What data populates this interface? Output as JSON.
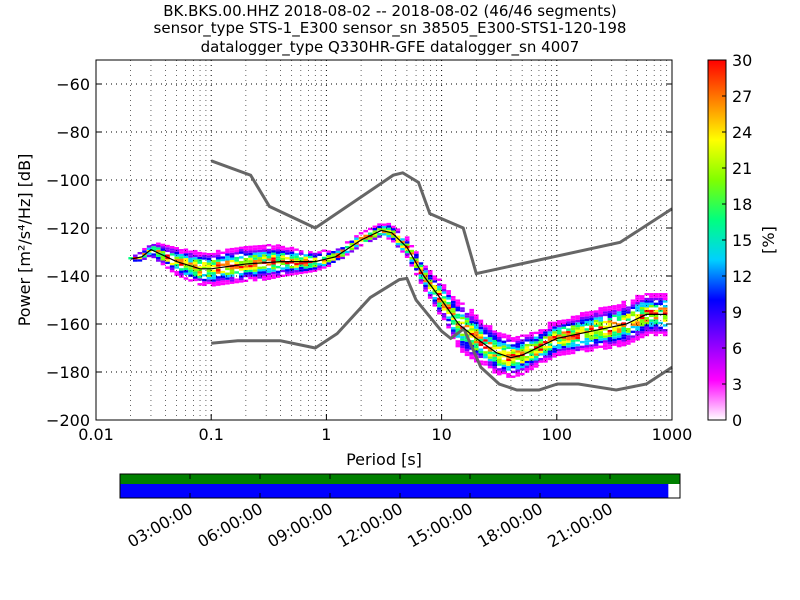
{
  "chart_data": {
    "type": "heatmap",
    "title_lines": [
      "BK.BKS.00.HHZ   2018-08-02 -- 2018-08-02  (46/46 segments)",
      "sensor_type STS-1_E300 sensor_sn 38505_E300-STS1-120-198",
      "datalogger_type Q330HR-GFE datalogger_sn 4007"
    ],
    "xlabel": "Period [s]",
    "ylabel": "Power [m²/s⁴/Hz] [dB]",
    "xscale": "log",
    "xlim": [
      0.01,
      1000
    ],
    "ylim": [
      -200,
      -50
    ],
    "xticks": [
      {
        "v": 0.01,
        "label": "0.01"
      },
      {
        "v": 0.1,
        "label": "0.1"
      },
      {
        "v": 1,
        "label": "1"
      },
      {
        "v": 10,
        "label": "10"
      },
      {
        "v": 100,
        "label": "100"
      },
      {
        "v": 1000,
        "label": "1000"
      }
    ],
    "yticks": [
      -200,
      -180,
      -160,
      -140,
      -120,
      -100,
      -80,
      -60
    ],
    "grid": true,
    "colorbar": {
      "label": "[%]",
      "range": [
        0,
        30
      ],
      "ticks": [
        0,
        3,
        6,
        9,
        12,
        15,
        18,
        21,
        24,
        27,
        30
      ],
      "colors": [
        "#ffffff",
        "#ff00ff",
        "#8000ff",
        "#0000ff",
        "#00d0ff",
        "#00ff80",
        "#80ff00",
        "#ffff00",
        "#ff8000",
        "#ff0000"
      ]
    },
    "high_noise_model": [
      [
        0.1,
        -92
      ],
      [
        0.22,
        -98
      ],
      [
        0.32,
        -111
      ],
      [
        0.8,
        -120
      ],
      [
        3.8,
        -98
      ],
      [
        4.6,
        -97
      ],
      [
        6.3,
        -101
      ],
      [
        7.9,
        -114
      ],
      [
        15.4,
        -120
      ],
      [
        20,
        -139
      ],
      [
        354,
        -126
      ],
      [
        1000,
        -112
      ]
    ],
    "low_noise_model": [
      [
        0.1,
        -168
      ],
      [
        0.17,
        -167
      ],
      [
        0.4,
        -167
      ],
      [
        0.8,
        -170
      ],
      [
        1.24,
        -164
      ],
      [
        2.4,
        -149
      ],
      [
        4.3,
        -141.5
      ],
      [
        5,
        -141
      ],
      [
        6,
        -150
      ],
      [
        10,
        -163
      ],
      [
        12,
        -166
      ],
      [
        15.6,
        -162
      ],
      [
        21.9,
        -178
      ],
      [
        31.6,
        -185
      ],
      [
        45,
        -187.5
      ],
      [
        70,
        -187.5
      ],
      [
        101,
        -185
      ],
      [
        154,
        -185
      ],
      [
        328,
        -187.5
      ],
      [
        600,
        -185
      ],
      [
        1000,
        -178
      ]
    ],
    "mode_curve": [
      [
        0.02,
        -133
      ],
      [
        0.025,
        -132
      ],
      [
        0.03,
        -129
      ],
      [
        0.05,
        -134
      ],
      [
        0.08,
        -137
      ],
      [
        0.1,
        -137
      ],
      [
        0.2,
        -135
      ],
      [
        0.4,
        -134
      ],
      [
        0.8,
        -134
      ],
      [
        1.2,
        -132
      ],
      [
        2,
        -125
      ],
      [
        3,
        -121
      ],
      [
        3.7,
        -122
      ],
      [
        5,
        -128
      ],
      [
        7,
        -140
      ],
      [
        10,
        -150
      ],
      [
        14,
        -160
      ],
      [
        20,
        -166
      ],
      [
        30,
        -172
      ],
      [
        40,
        -174
      ],
      [
        50,
        -173
      ],
      [
        100,
        -166
      ],
      [
        200,
        -163
      ],
      [
        400,
        -160
      ],
      [
        600,
        -156
      ],
      [
        900,
        -156
      ]
    ],
    "spread_db": [
      [
        0.02,
        1
      ],
      [
        0.03,
        2
      ],
      [
        0.05,
        4
      ],
      [
        0.1,
        5
      ],
      [
        0.3,
        5
      ],
      [
        0.8,
        3
      ],
      [
        1.5,
        2
      ],
      [
        3,
        2
      ],
      [
        5,
        3
      ],
      [
        8,
        4
      ],
      [
        15,
        7
      ],
      [
        30,
        6
      ],
      [
        100,
        5
      ],
      [
        300,
        6
      ],
      [
        900,
        6
      ]
    ],
    "timeline": {
      "start_hours": 0,
      "end_hours": 24,
      "data_end_hours": 23.5,
      "tick_labels": [
        "03:00:00",
        "06:00:00",
        "09:00:00",
        "12:00:00",
        "15:00:00",
        "18:00:00",
        "21:00:00"
      ],
      "coverage_color": "#008000",
      "segments_color": "#0000ff"
    }
  }
}
